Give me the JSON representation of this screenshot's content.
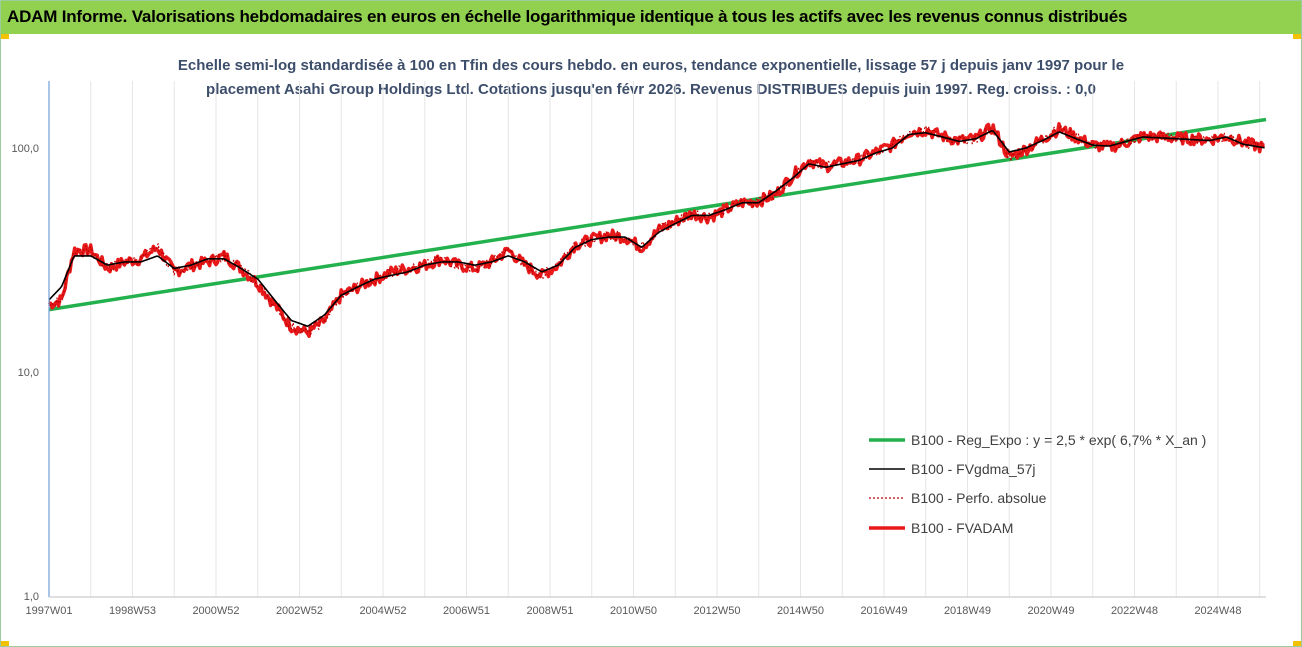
{
  "banner": {
    "title": "ADAM Informe. Valorisations hebdomadaires en euros en échelle logarithmique identique à tous les actifs avec les revenus connus distribués",
    "color": "#92d050"
  },
  "chart_data": {
    "type": "line",
    "title_line1": "Echelle semi-log standardisée à 100 en Tfin des cours hebdo. en euros, tendance exponentielle, lissage 57 j depuis janv 1997 pour le",
    "title_line2": "placement Asahi Group Holdings Ltd. Cotations jusqu'en févr 2026. Revenus DISTRIBUES depuis juin 1997. Reg. croiss. : 0,0",
    "y_scale": "log",
    "ylim": [
      1,
      200
    ],
    "y_ticks": [
      "100,0",
      "10,0",
      "1,0"
    ],
    "y_tick_values": [
      100,
      10,
      1
    ],
    "x_ticks": [
      "1997W01",
      "1998W53",
      "2000W52",
      "2002W52",
      "2004W52",
      "2006W51",
      "2008W51",
      "2010W50",
      "2012W50",
      "2014W50",
      "2016W49",
      "2018W49",
      "2020W49",
      "2022W48",
      "2024W48"
    ],
    "x_tick_years": [
      1997.0,
      1999.0,
      2001.0,
      2003.0,
      2005.0,
      2007.0,
      2009.0,
      2011.0,
      2013.0,
      2015.0,
      2017.0,
      2019.0,
      2021.0,
      2023.0,
      2025.0
    ],
    "x_range": [
      1997.0,
      2026.15
    ],
    "grid": "vertical",
    "legend_position": "bottom-right",
    "series": [
      {
        "name": "B100 - Reg_Expo : y = 2,5 * exp( 6,7% *  X_an )",
        "color": "#22b14c",
        "style": "solid-thick",
        "x": [
          1997.0,
          2026.15
        ],
        "values": [
          19,
          134
        ]
      },
      {
        "name": "B100 - FVgdma_57j",
        "color": "#000000",
        "style": "solid-thin",
        "x": [
          1997.0,
          1997.3,
          1997.6,
          1998.0,
          1998.4,
          1998.8,
          1999.2,
          1999.6,
          2000.0,
          2000.4,
          2000.8,
          2001.2,
          2001.6,
          2002.0,
          2002.4,
          2002.8,
          2003.2,
          2003.6,
          2004.0,
          2004.4,
          2004.8,
          2005.2,
          2005.6,
          2006.0,
          2006.4,
          2006.8,
          2007.2,
          2007.6,
          2008.0,
          2008.4,
          2008.8,
          2009.2,
          2009.6,
          2010.0,
          2010.4,
          2010.8,
          2011.2,
          2011.6,
          2012.0,
          2012.4,
          2012.8,
          2013.2,
          2013.6,
          2014.0,
          2014.4,
          2014.8,
          2015.2,
          2015.6,
          2016.0,
          2016.4,
          2016.8,
          2017.2,
          2017.6,
          2018.0,
          2018.4,
          2018.8,
          2019.2,
          2019.6,
          2020.0,
          2020.4,
          2020.8,
          2021.2,
          2021.6,
          2022.0,
          2022.4,
          2022.8,
          2023.2,
          2023.6,
          2024.0,
          2024.4,
          2024.8,
          2025.2,
          2025.6,
          2026.15
        ],
        "values": [
          21,
          24,
          33,
          33,
          30,
          31,
          31,
          33,
          29,
          30,
          32,
          32,
          29,
          26,
          21,
          17,
          16,
          18,
          22,
          24,
          26,
          27,
          28,
          30,
          31,
          31,
          30,
          31,
          33,
          31,
          28,
          30,
          36,
          39,
          40,
          40,
          36,
          42,
          46,
          50,
          50,
          53,
          57,
          57,
          64,
          73,
          85,
          82,
          85,
          88,
          95,
          100,
          115,
          117,
          112,
          107,
          110,
          120,
          96,
          100,
          108,
          118,
          110,
          103,
          102,
          107,
          112,
          111,
          110,
          109,
          108,
          112,
          104,
          100
        ]
      },
      {
        "name": "B100 - Perfo. absolue",
        "color": "#c00000",
        "style": "dotted",
        "x": [
          1997.0,
          1997.3,
          1997.6,
          1998.0,
          1998.4,
          1998.8,
          1999.2,
          1999.6,
          2000.0,
          2000.4,
          2000.8,
          2001.2,
          2001.6,
          2002.0,
          2002.4,
          2002.8,
          2003.2,
          2003.6,
          2004.0,
          2004.4,
          2004.8,
          2005.2,
          2005.6,
          2006.0,
          2006.4,
          2006.8,
          2007.2,
          2007.6,
          2008.0,
          2008.4,
          2008.8,
          2009.2,
          2009.6,
          2010.0,
          2010.4,
          2010.8,
          2011.2,
          2011.6,
          2012.0,
          2012.4,
          2012.8,
          2013.2,
          2013.6,
          2014.0,
          2014.4,
          2014.8,
          2015.2,
          2015.6,
          2016.0,
          2016.4,
          2016.8,
          2017.2,
          2017.6,
          2018.0,
          2018.4,
          2018.8,
          2019.2,
          2019.6,
          2020.0,
          2020.4,
          2020.8,
          2021.2,
          2021.6,
          2022.0,
          2022.4,
          2022.8,
          2023.2,
          2023.6,
          2024.0,
          2024.4,
          2024.8,
          2025.2,
          2025.6,
          2026.15
        ],
        "values": [
          20,
          21,
          35,
          35,
          29,
          31,
          32,
          36,
          28,
          30,
          31,
          33,
          29,
          25,
          20,
          16,
          15,
          17,
          22,
          24,
          26,
          28,
          29,
          30,
          32,
          30,
          29,
          31,
          35,
          30,
          27,
          30,
          37,
          39,
          41,
          40,
          36,
          43,
          47,
          51,
          49,
          53,
          57,
          58,
          62,
          75,
          88,
          83,
          86,
          89,
          96,
          103,
          118,
          120,
          113,
          108,
          110,
          124,
          91,
          99,
          110,
          122,
          112,
          103,
          101,
          106,
          113,
          112,
          111,
          110,
          109,
          113,
          106,
          100
        ]
      },
      {
        "name": "B100 - FVADAM",
        "color": "#e8191a",
        "style": "solid-thick",
        "x": [
          1997.0,
          1997.3,
          1997.6,
          1998.0,
          1998.4,
          1998.8,
          1999.2,
          1999.6,
          2000.0,
          2000.4,
          2000.8,
          2001.2,
          2001.6,
          2002.0,
          2002.4,
          2002.8,
          2003.2,
          2003.6,
          2004.0,
          2004.4,
          2004.8,
          2005.2,
          2005.6,
          2006.0,
          2006.4,
          2006.8,
          2007.2,
          2007.6,
          2008.0,
          2008.4,
          2008.8,
          2009.2,
          2009.6,
          2010.0,
          2010.4,
          2010.8,
          2011.2,
          2011.6,
          2012.0,
          2012.4,
          2012.8,
          2013.2,
          2013.6,
          2014.0,
          2014.4,
          2014.8,
          2015.2,
          2015.6,
          2016.0,
          2016.4,
          2016.8,
          2017.2,
          2017.6,
          2018.0,
          2018.4,
          2018.8,
          2019.2,
          2019.6,
          2020.0,
          2020.4,
          2020.8,
          2021.2,
          2021.6,
          2022.0,
          2022.4,
          2022.8,
          2023.2,
          2023.6,
          2024.0,
          2024.4,
          2024.8,
          2025.2,
          2025.6,
          2026.15
        ],
        "values": [
          20,
          21,
          35,
          35,
          29,
          31,
          32,
          36,
          28,
          30,
          31,
          33,
          29,
          25,
          20,
          16,
          15,
          17,
          22,
          24,
          26,
          28,
          29,
          30,
          32,
          30,
          29,
          31,
          35,
          30,
          27,
          30,
          37,
          39,
          41,
          40,
          36,
          43,
          47,
          51,
          49,
          53,
          57,
          58,
          62,
          75,
          88,
          83,
          86,
          89,
          96,
          103,
          118,
          120,
          113,
          108,
          110,
          124,
          91,
          99,
          110,
          122,
          112,
          103,
          101,
          106,
          113,
          112,
          111,
          110,
          109,
          113,
          106,
          100
        ]
      }
    ]
  }
}
